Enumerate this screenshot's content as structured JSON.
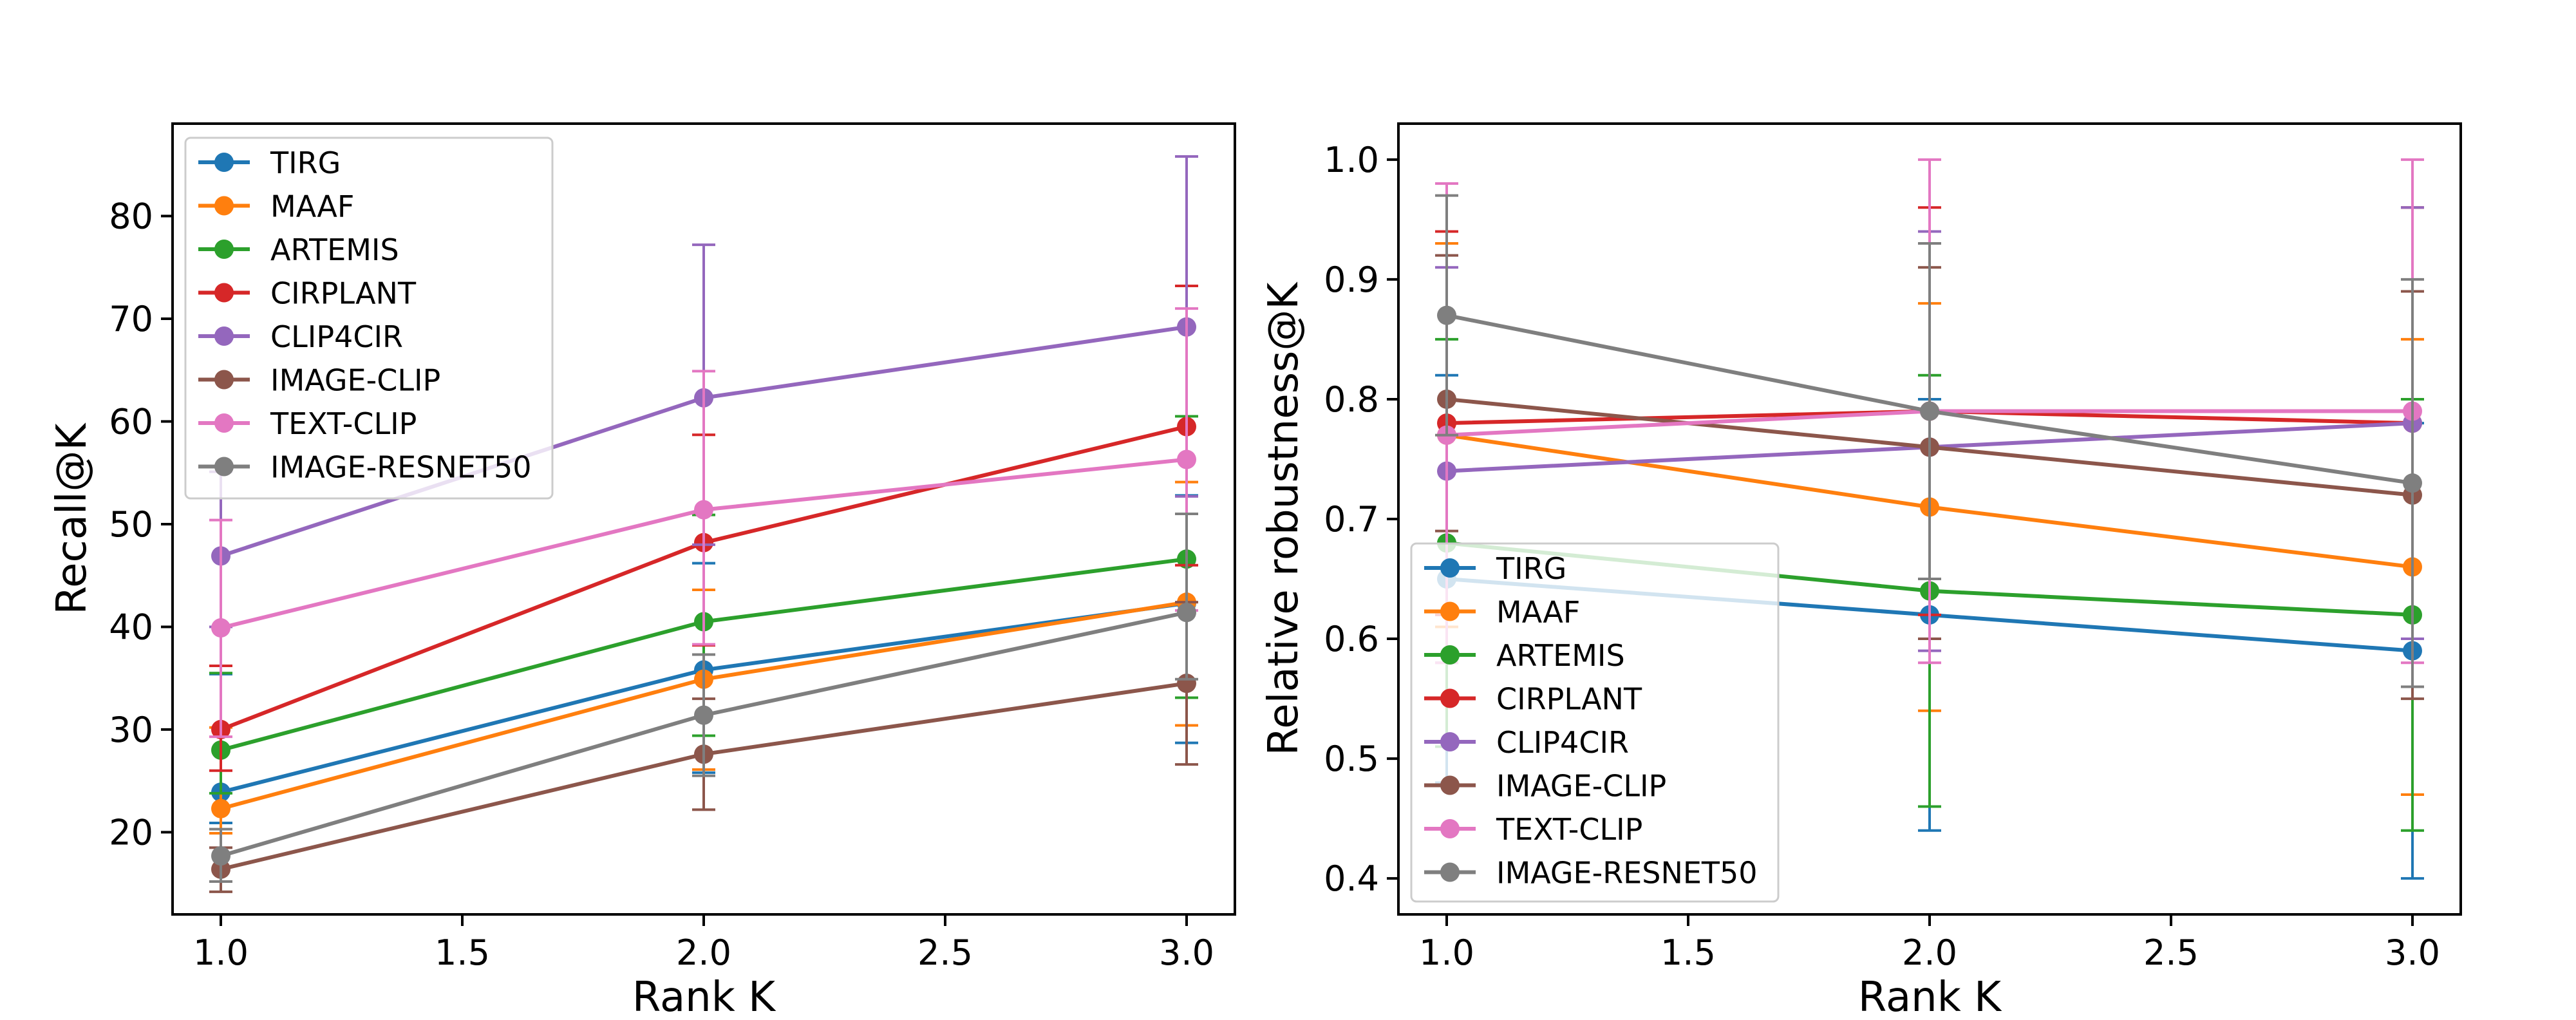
{
  "chart_data": [
    {
      "type": "line",
      "title": "",
      "xlabel": "Rank K",
      "ylabel": "Recall@K",
      "x": [
        1.0,
        2.0,
        3.0
      ],
      "xlim": [
        0.9,
        3.1
      ],
      "ylim": [
        12,
        89
      ],
      "xticks": [
        1.0,
        1.5,
        2.0,
        2.5,
        3.0
      ],
      "xtick_labels": [
        "1.0",
        "1.5",
        "2.0",
        "2.5",
        "3.0"
      ],
      "yticks": [
        20,
        30,
        40,
        50,
        60,
        70,
        80
      ],
      "ytick_labels": [
        "20",
        "30",
        "40",
        "50",
        "60",
        "70",
        "80"
      ],
      "grid": false,
      "legend_position": "top-left",
      "series": [
        {
          "name": "TIRG",
          "color": "#1f77b4",
          "values": [
            23.9,
            35.8,
            42.3
          ],
          "err_low": [
            20.9,
            25.8,
            28.7
          ],
          "err_high": [
            35.4,
            46.2,
            52.8
          ]
        },
        {
          "name": "MAAF",
          "color": "#ff7f0e",
          "values": [
            22.3,
            34.9,
            42.4
          ],
          "err_low": [
            19.9,
            26.1,
            30.4
          ],
          "err_high": [
            30.2,
            43.6,
            54.1
          ]
        },
        {
          "name": "ARTEMIS",
          "color": "#2ca02c",
          "values": [
            28.0,
            40.5,
            46.6
          ],
          "err_low": [
            23.8,
            29.4,
            33.1
          ],
          "err_high": [
            35.5,
            50.9,
            60.5
          ]
        },
        {
          "name": "CIRPLANT",
          "color": "#d62728",
          "values": [
            30.0,
            48.2,
            59.5
          ],
          "err_low": [
            26.0,
            38.2,
            46.0
          ],
          "err_high": [
            36.2,
            58.7,
            73.2
          ]
        },
        {
          "name": "CLIP4CIR",
          "color": "#9467bd",
          "values": [
            46.9,
            62.3,
            69.2
          ],
          "err_low": [
            40.0,
            48.0,
            52.7
          ],
          "err_high": [
            55.1,
            77.2,
            85.8
          ]
        },
        {
          "name": "IMAGE-CLIP",
          "color": "#8c564b",
          "values": [
            16.4,
            27.6,
            34.5
          ],
          "err_low": [
            14.2,
            22.2,
            26.6
          ],
          "err_high": [
            18.5,
            33.0,
            42.4
          ]
        },
        {
          "name": "TEXT-CLIP",
          "color": "#e377c2",
          "values": [
            39.9,
            51.4,
            56.3
          ],
          "err_low": [
            29.3,
            38.3,
            41.6
          ],
          "err_high": [
            50.4,
            64.9,
            71.0
          ]
        },
        {
          "name": "IMAGE-RESNET50",
          "color": "#7f7f7f",
          "values": [
            17.7,
            31.4,
            41.4
          ],
          "err_low": [
            15.2,
            25.5,
            34.9
          ],
          "err_high": [
            20.3,
            37.3,
            51.0
          ]
        }
      ]
    },
    {
      "type": "line",
      "title": "",
      "xlabel": "Rank K",
      "ylabel": "Relative robustness@K",
      "x": [
        1.0,
        2.0,
        3.0
      ],
      "xlim": [
        0.9,
        3.1
      ],
      "ylim": [
        0.37,
        1.03
      ],
      "xticks": [
        1.0,
        1.5,
        2.0,
        2.5,
        3.0
      ],
      "xtick_labels": [
        "1.0",
        "1.5",
        "2.0",
        "2.5",
        "3.0"
      ],
      "yticks": [
        0.4,
        0.5,
        0.6,
        0.7,
        0.8,
        0.9,
        1.0
      ],
      "ytick_labels": [
        "0.4",
        "0.5",
        "0.6",
        "0.7",
        "0.8",
        "0.9",
        "1.0"
      ],
      "grid": false,
      "legend_position": "bottom-left",
      "series": [
        {
          "name": "TIRG",
          "color": "#1f77b4",
          "values": [
            0.65,
            0.62,
            0.59
          ],
          "err_low": [
            0.48,
            0.44,
            0.4
          ],
          "err_high": [
            0.82,
            0.8,
            0.78
          ]
        },
        {
          "name": "MAAF",
          "color": "#ff7f0e",
          "values": [
            0.77,
            0.71,
            0.66
          ],
          "err_low": [
            0.61,
            0.54,
            0.47
          ],
          "err_high": [
            0.93,
            0.88,
            0.85
          ]
        },
        {
          "name": "ARTEMIS",
          "color": "#2ca02c",
          "values": [
            0.68,
            0.64,
            0.62
          ],
          "err_low": [
            0.51,
            0.46,
            0.44
          ],
          "err_high": [
            0.85,
            0.82,
            0.8
          ]
        },
        {
          "name": "CIRPLANT",
          "color": "#d62728",
          "values": [
            0.78,
            0.79,
            0.78
          ],
          "err_low": [
            0.62,
            0.62,
            0.6
          ],
          "err_high": [
            0.94,
            0.96,
            0.96
          ]
        },
        {
          "name": "CLIP4CIR",
          "color": "#9467bd",
          "values": [
            0.74,
            0.76,
            0.78
          ],
          "err_low": [
            0.58,
            0.59,
            0.6
          ],
          "err_high": [
            0.91,
            0.94,
            0.96
          ]
        },
        {
          "name": "IMAGE-CLIP",
          "color": "#8c564b",
          "values": [
            0.8,
            0.76,
            0.72
          ],
          "err_low": [
            0.69,
            0.6,
            0.55
          ],
          "err_high": [
            0.92,
            0.91,
            0.89
          ]
        },
        {
          "name": "TEXT-CLIP",
          "color": "#e377c2",
          "values": [
            0.77,
            0.79,
            0.79
          ],
          "err_low": [
            0.58,
            0.58,
            0.58
          ],
          "err_high": [
            0.98,
            1.0,
            1.0
          ]
        },
        {
          "name": "IMAGE-RESNET50",
          "color": "#7f7f7f",
          "values": [
            0.87,
            0.79,
            0.73
          ],
          "err_low": [
            0.77,
            0.65,
            0.56
          ],
          "err_high": [
            0.97,
            0.93,
            0.9
          ]
        }
      ]
    }
  ]
}
